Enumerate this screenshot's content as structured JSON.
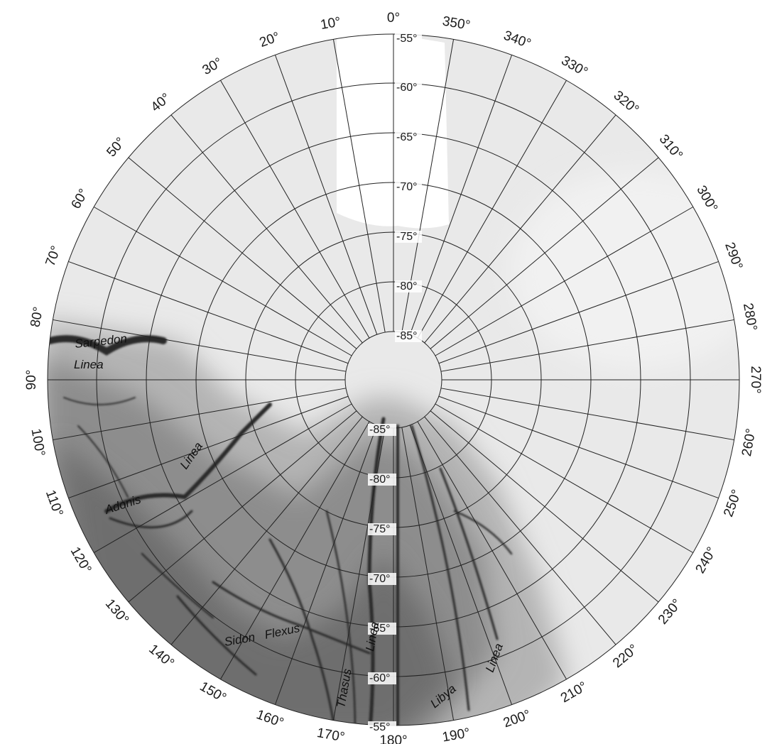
{
  "map": {
    "longitude_labels": [
      "0°",
      "10°",
      "20°",
      "30°",
      "40°",
      "50°",
      "60°",
      "70°",
      "80°",
      "90°",
      "100°",
      "110°",
      "120°",
      "130°",
      "140°",
      "150°",
      "160°",
      "170°",
      "180°",
      "190°",
      "200°",
      "210°",
      "220°",
      "230°",
      "240°",
      "250°",
      "260°",
      "270°",
      "280°",
      "290°",
      "300°",
      "310°",
      "320°",
      "330°",
      "340°",
      "350°"
    ],
    "latitude_labels_top": [
      "-55°",
      "-60°",
      "-65°",
      "-70°",
      "-75°",
      "-80°",
      "-85°"
    ],
    "latitude_labels_bottom": [
      "-85°",
      "-80°",
      "-75°",
      "-70°",
      "-65°",
      "-60°",
      "-55°"
    ],
    "features": {
      "sarpedon": "Sarpedon",
      "sarpedon_linea": "Linea",
      "adonis": "Adonis",
      "adonis_linea": "Linea",
      "sidon": "Sidon",
      "flexus": "Flexus",
      "thasus": "Thasus",
      "thasus_linea": "Linea",
      "libya": "Libya",
      "libya_linea": "Linea"
    }
  }
}
